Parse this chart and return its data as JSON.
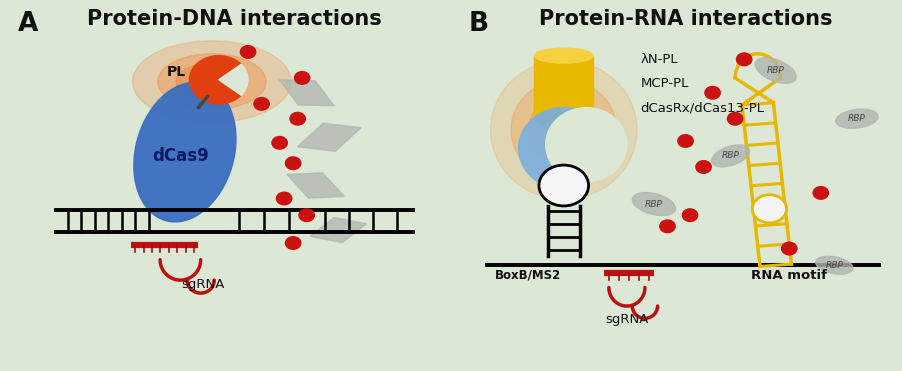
{
  "background_color": "#dce8d5",
  "panel_A_title": "Protein-DNA interactions",
  "panel_B_title": "Protein-RNA interactions",
  "label_A": "A",
  "label_B": "B",
  "title_fontsize": 15,
  "label_fontsize": 19,
  "text_color": "#111111",
  "red_dot_color": "#cc1111",
  "pl_color": "#e04010",
  "dcas9_color": "#3a6ec0",
  "dna_color": "#111111",
  "sgrna_color": "#bb1111",
  "gray_color": "#b0b5b0",
  "yellow_color": "#e8b800",
  "yellow_dark": "#c89800",
  "blue_light_color": "#7ab0e0",
  "white_color": "#f5f5f5"
}
